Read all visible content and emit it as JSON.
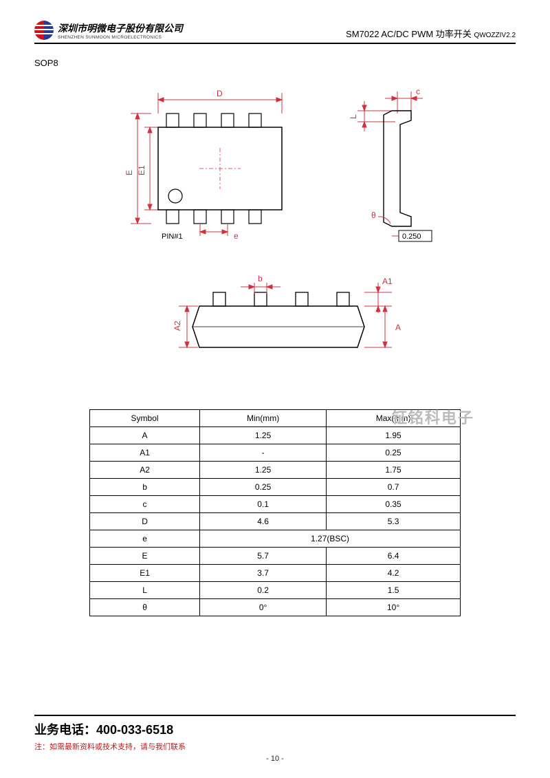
{
  "header": {
    "company_cn": "深圳市明微电子股份有限公司",
    "company_en": "SHENZHEN SUNMOON MICROELECTRONICS",
    "product": "SM7022 AC/DC PWM 功率开关",
    "version": "QWOZZIV2.2"
  },
  "package_label": "SOP8",
  "diagram": {
    "type": "engineering-drawing",
    "line_color": "#d23040",
    "body_color": "#222",
    "labels": {
      "D": "D",
      "E": "E",
      "E1": "E1",
      "e": "e",
      "pin1": "PIN#1",
      "c": "c",
      "L": "L",
      "theta": "θ",
      "ref_dim": "0.250",
      "b": "b",
      "A": "A",
      "A1": "A1",
      "A2": "A2"
    }
  },
  "watermark": "钲铭科电子",
  "table": {
    "columns": [
      "Symbol",
      "Min(mm)",
      "Max(mm)"
    ],
    "rows": [
      {
        "sym": "A",
        "min": "1.25",
        "max": "1.95",
        "span": false
      },
      {
        "sym": "A1",
        "min": "-",
        "max": "0.25",
        "span": false
      },
      {
        "sym": "A2",
        "min": "1.25",
        "max": "1.75",
        "span": false
      },
      {
        "sym": "b",
        "min": "0.25",
        "max": "0.7",
        "span": false
      },
      {
        "sym": "c",
        "min": "0.1",
        "max": "0.35",
        "span": false
      },
      {
        "sym": "D",
        "min": "4.6",
        "max": "5.3",
        "span": false
      },
      {
        "sym": "e",
        "min": "1.27(BSC)",
        "max": "",
        "span": true
      },
      {
        "sym": "E",
        "min": "5.7",
        "max": "6.4",
        "span": false
      },
      {
        "sym": "E1",
        "min": "3.7",
        "max": "4.2",
        "span": false
      },
      {
        "sym": "L",
        "min": "0.2",
        "max": "1.5",
        "span": false
      },
      {
        "sym": "θ",
        "min": "0°",
        "max": "10°",
        "span": false
      }
    ]
  },
  "footer": {
    "phone_label": "业务电话：",
    "phone": "400-033-6518",
    "note": "注：如需最新资料或技术支持，请与我们联系",
    "page": "- 10 -"
  }
}
